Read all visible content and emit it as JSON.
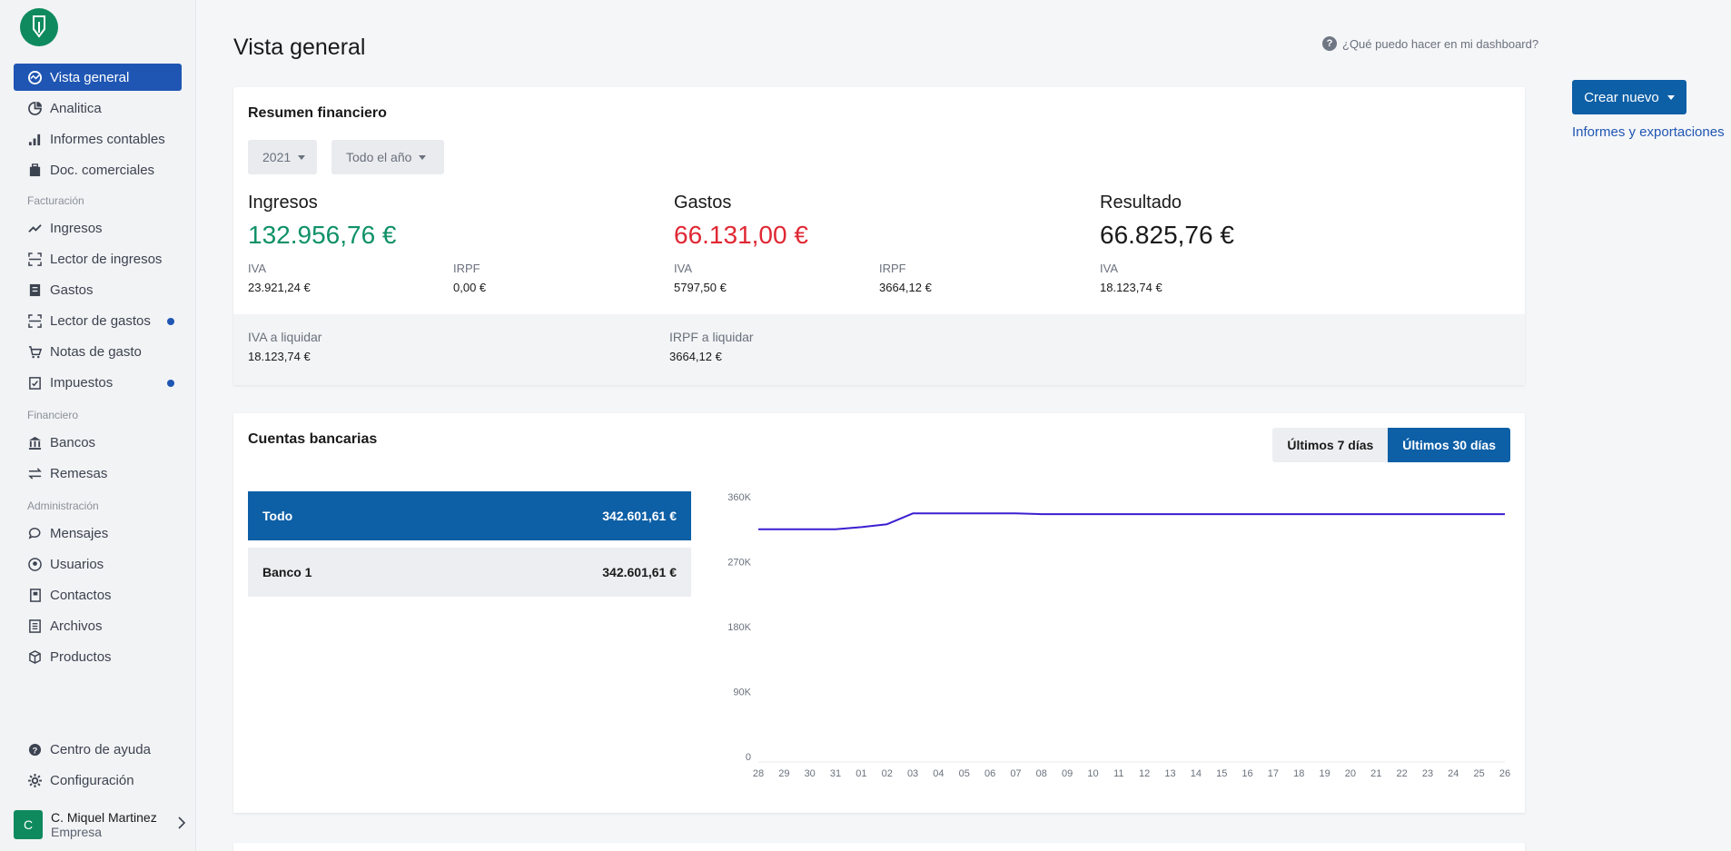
{
  "sidebar": {
    "logo_icon": "pencil-leaf-logo",
    "items": [
      {
        "label": "Vista general",
        "icon": "dashboard-icon",
        "active": true
      },
      {
        "label": "Analitica",
        "icon": "pie-chart-icon"
      },
      {
        "label": "Informes contables",
        "icon": "bar-chart-icon"
      },
      {
        "label": "Doc. comerciales",
        "icon": "briefcase-icon"
      }
    ],
    "sections": {
      "facturacion": "Facturación",
      "financiero": "Financiero",
      "administracion": "Administración"
    },
    "facturacion_items": [
      {
        "label": "Ingresos",
        "icon": "trend-up-icon"
      },
      {
        "label": "Lector de ingresos",
        "icon": "scan-icon"
      },
      {
        "label": "Gastos",
        "icon": "receipt-icon"
      },
      {
        "label": "Lector de gastos",
        "icon": "scan-icon",
        "dot": true
      },
      {
        "label": "Notas de gasto",
        "icon": "cart-icon"
      },
      {
        "label": "Impuestos",
        "icon": "tax-icon",
        "dot": true
      }
    ],
    "financiero_items": [
      {
        "label": "Bancos",
        "icon": "bank-icon"
      },
      {
        "label": "Remesas",
        "icon": "transfer-icon"
      }
    ],
    "admin_items": [
      {
        "label": "Mensajes",
        "icon": "chat-icon"
      },
      {
        "label": "Usuarios",
        "icon": "user-circle-icon"
      },
      {
        "label": "Contactos",
        "icon": "contacts-icon"
      },
      {
        "label": "Archivos",
        "icon": "file-icon"
      },
      {
        "label": "Productos",
        "icon": "box-icon"
      }
    ],
    "bottom_items": [
      {
        "label": "Centro de ayuda",
        "icon": "help-icon"
      },
      {
        "label": "Configuración",
        "icon": "gear-icon"
      }
    ],
    "user": {
      "initial": "C",
      "name": "C. Miquel Martinez",
      "role": "Empresa"
    }
  },
  "header": {
    "title": "Vista general",
    "help_text": "¿Qué puedo hacer en mi dashboard?"
  },
  "actions": {
    "create_label": "Crear nuevo",
    "export_link": "Informes y exportaciones"
  },
  "summary": {
    "title": "Resumen financiero",
    "year": "2021",
    "period": "Todo el año",
    "ingresos": {
      "label": "Ingresos",
      "value": "132.956,76 €",
      "iva_label": "IVA",
      "iva": "23.921,24 €",
      "irpf_label": "IRPF",
      "irpf": "0,00 €"
    },
    "gastos": {
      "label": "Gastos",
      "value": "66.131,00 €",
      "iva_label": "IVA",
      "iva": "5797,50 €",
      "irpf_label": "IRPF",
      "irpf": "3664,12 €"
    },
    "resultado": {
      "label": "Resultado",
      "value": "66.825,76 €",
      "iva_label": "IVA",
      "iva": "18.123,74 €"
    },
    "iva_liquidar": {
      "label": "IVA a liquidar",
      "value": "18.123,74 €"
    },
    "irpf_liquidar": {
      "label": "IRPF a liquidar",
      "value": "3664,12 €"
    },
    "colors": {
      "ingresos": "#0f9168",
      "gastos": "#e02834",
      "resultado": "#1a1a1a"
    }
  },
  "banks": {
    "title": "Cuentas bancarias",
    "tabs": [
      "Últimos 7 días",
      "Últimos 30 días"
    ],
    "active_tab": 1,
    "accounts": [
      {
        "name": "Todo",
        "amount": "342.601,61 €"
      },
      {
        "name": "Banco 1",
        "amount": "342.601,61 €"
      }
    ]
  },
  "chart_data": {
    "type": "line",
    "categories": [
      "28",
      "29",
      "30",
      "31",
      "01",
      "02",
      "03",
      "04",
      "05",
      "06",
      "07",
      "08",
      "09",
      "10",
      "11",
      "12",
      "13",
      "14",
      "15",
      "16",
      "17",
      "18",
      "19",
      "20",
      "21",
      "22",
      "23",
      "24",
      "25",
      "26"
    ],
    "series": [
      {
        "values": [
          315000,
          315000,
          315000,
          315000,
          318000,
          322000,
          337000,
          337000,
          337000,
          337000,
          337000,
          336000,
          336000,
          336000,
          336000,
          336000,
          336000,
          336000,
          336000,
          336000,
          336000,
          336000,
          336000,
          336000,
          336000,
          336000,
          336000,
          336000,
          336000,
          336000
        ]
      }
    ],
    "yticks": [
      "0",
      "90K",
      "180K",
      "270K",
      "360K"
    ],
    "ylim": [
      0,
      360000
    ],
    "line_color": "#3b1fd1",
    "grid": false
  }
}
